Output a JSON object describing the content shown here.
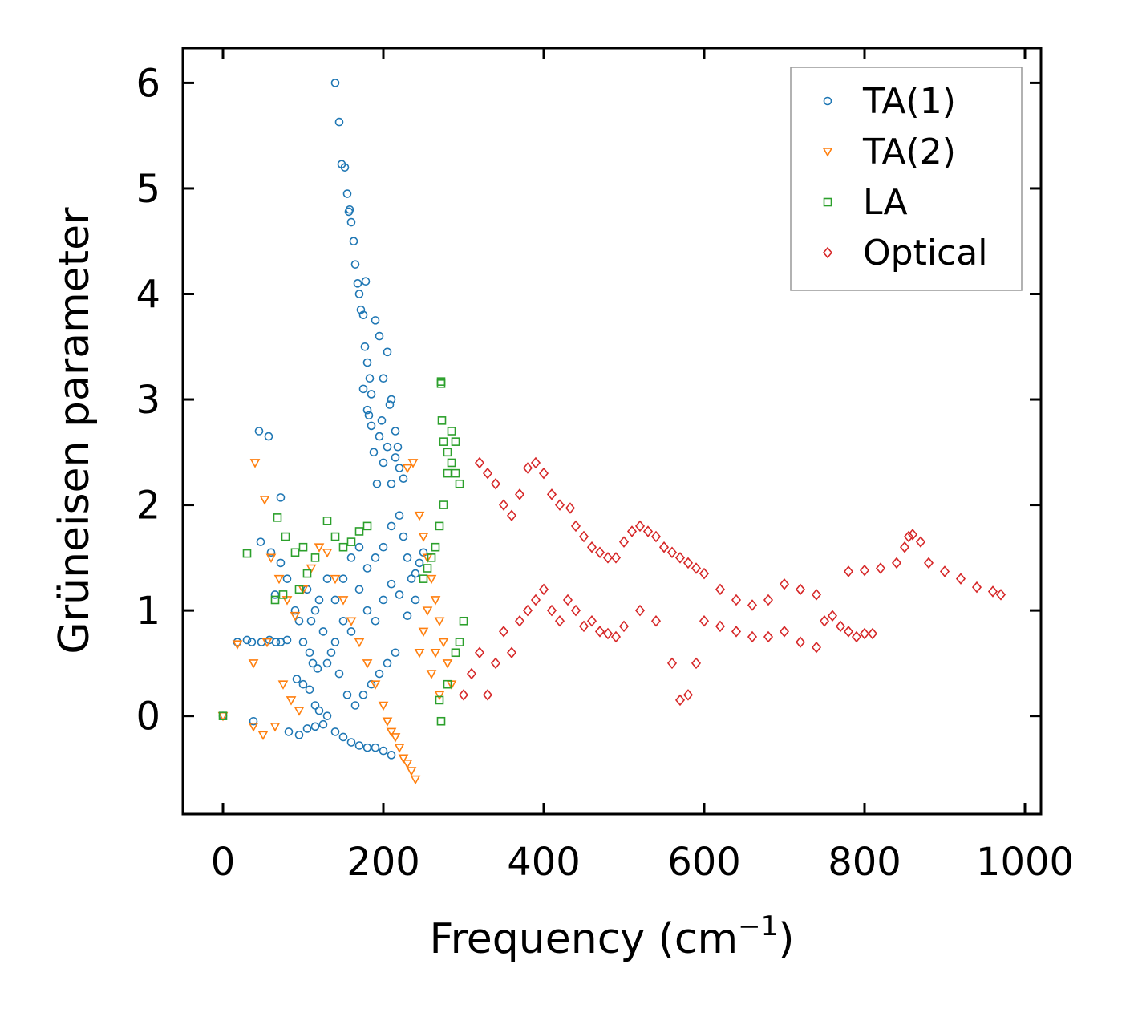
{
  "chart_data": {
    "type": "scatter",
    "title": "",
    "xlabel": "Frequency (cm",
    "xlabel_sup": "−1",
    "xlabel_suffix": ")",
    "ylabel": "Grüneisen parameter",
    "xlim": [
      -50,
      1020
    ],
    "ylim": [
      -0.93,
      6.33
    ],
    "xticks": [
      0,
      200,
      400,
      600,
      800,
      1000
    ],
    "xtick_labels": [
      "0",
      "200",
      "400",
      "600",
      "800",
      "1000"
    ],
    "yticks": [
      0,
      1,
      2,
      3,
      4,
      5,
      6
    ],
    "ytick_labels": [
      "0",
      "1",
      "2",
      "3",
      "4",
      "5",
      "6"
    ],
    "grid": false,
    "legend_position": "top-right",
    "series": [
      {
        "name": "TA(1)",
        "marker": "circle",
        "color": "#1f77b4",
        "points": [
          [
            0,
            0
          ],
          [
            38,
            -0.05
          ],
          [
            45,
            2.7
          ],
          [
            57,
            2.65
          ],
          [
            47,
            1.65
          ],
          [
            72,
            2.07
          ],
          [
            140,
            6.0
          ],
          [
            145,
            5.63
          ],
          [
            148,
            5.23
          ],
          [
            152,
            5.2
          ],
          [
            155,
            4.95
          ],
          [
            158,
            4.8
          ],
          [
            157,
            4.78
          ],
          [
            160,
            4.68
          ],
          [
            163,
            4.5
          ],
          [
            165,
            4.28
          ],
          [
            168,
            4.1
          ],
          [
            170,
            4.0
          ],
          [
            172,
            3.85
          ],
          [
            175,
            3.8
          ],
          [
            177,
            3.5
          ],
          [
            180,
            3.35
          ],
          [
            183,
            3.2
          ],
          [
            185,
            3.05
          ],
          [
            190,
            3.75
          ],
          [
            195,
            3.6
          ],
          [
            200,
            3.2
          ],
          [
            205,
            3.45
          ],
          [
            210,
            3.0
          ],
          [
            215,
            2.7
          ],
          [
            178,
            4.12
          ],
          [
            182,
            2.85
          ],
          [
            188,
            2.5
          ],
          [
            192,
            2.2
          ],
          [
            200,
            2.4
          ],
          [
            210,
            2.2
          ],
          [
            18,
            0.7
          ],
          [
            30,
            0.72
          ],
          [
            36,
            0.7
          ],
          [
            48,
            0.7
          ],
          [
            58,
            0.72
          ],
          [
            66,
            0.7
          ],
          [
            72,
            0.7
          ],
          [
            80,
            0.72
          ],
          [
            60,
            1.55
          ],
          [
            65,
            1.15
          ],
          [
            72,
            1.45
          ],
          [
            80,
            1.3
          ],
          [
            90,
            1.0
          ],
          [
            95,
            0.9
          ],
          [
            100,
            0.7
          ],
          [
            108,
            0.6
          ],
          [
            112,
            0.5
          ],
          [
            118,
            0.45
          ],
          [
            92,
            0.35
          ],
          [
            100,
            0.3
          ],
          [
            108,
            0.25
          ],
          [
            115,
            0.1
          ],
          [
            120,
            0.05
          ],
          [
            130,
            0.0
          ],
          [
            82,
            -0.15
          ],
          [
            95,
            -0.18
          ],
          [
            105,
            -0.12
          ],
          [
            115,
            -0.1
          ],
          [
            125,
            -0.08
          ],
          [
            140,
            -0.15
          ],
          [
            150,
            -0.2
          ],
          [
            160,
            -0.25
          ],
          [
            170,
            -0.28
          ],
          [
            180,
            -0.3
          ],
          [
            190,
            -0.3
          ],
          [
            200,
            -0.33
          ],
          [
            210,
            -0.37
          ],
          [
            130,
            1.3
          ],
          [
            140,
            1.1
          ],
          [
            150,
            0.9
          ],
          [
            160,
            0.8
          ],
          [
            170,
            1.2
          ],
          [
            180,
            1.4
          ],
          [
            190,
            1.5
          ],
          [
            200,
            1.6
          ],
          [
            210,
            1.8
          ],
          [
            220,
            1.9
          ],
          [
            225,
            1.7
          ],
          [
            230,
            1.5
          ],
          [
            235,
            1.3
          ],
          [
            240,
            1.1
          ],
          [
            215,
            0.6
          ],
          [
            205,
            0.5
          ],
          [
            195,
            0.4
          ],
          [
            185,
            0.3
          ],
          [
            175,
            0.2
          ],
          [
            165,
            0.1
          ],
          [
            155,
            0.2
          ],
          [
            145,
            0.4
          ],
          [
            135,
            0.6
          ],
          [
            125,
            0.8
          ],
          [
            115,
            1.0
          ],
          [
            105,
            1.2
          ],
          [
            110,
            0.9
          ],
          [
            120,
            1.1
          ],
          [
            130,
            0.5
          ],
          [
            140,
            0.7
          ],
          [
            150,
            1.3
          ],
          [
            160,
            1.5
          ],
          [
            170,
            1.6
          ],
          [
            180,
            1.0
          ],
          [
            190,
            0.9
          ],
          [
            200,
            1.1
          ],
          [
            210,
            1.25
          ],
          [
            220,
            1.15
          ],
          [
            230,
            0.95
          ],
          [
            240,
            1.35
          ],
          [
            245,
            1.45
          ],
          [
            250,
            1.55
          ],
          [
            175,
            3.1
          ],
          [
            180,
            2.9
          ],
          [
            185,
            2.75
          ],
          [
            195,
            2.65
          ],
          [
            205,
            2.55
          ],
          [
            215,
            2.45
          ],
          [
            220,
            2.35
          ],
          [
            225,
            2.25
          ],
          [
            218,
            2.55
          ],
          [
            208,
            2.95
          ],
          [
            198,
            2.8
          ]
        ]
      },
      {
        "name": "TA(2)",
        "marker": "triangle-down",
        "color": "#ff7f0e",
        "points": [
          [
            0,
            0
          ],
          [
            18,
            0.68
          ],
          [
            38,
            -0.1
          ],
          [
            40,
            2.4
          ],
          [
            50,
            -0.18
          ],
          [
            52,
            2.05
          ],
          [
            38,
            0.5
          ],
          [
            55,
            0.7
          ],
          [
            65,
            -0.1
          ],
          [
            75,
            0.3
          ],
          [
            85,
            0.15
          ],
          [
            95,
            0.05
          ],
          [
            60,
            1.5
          ],
          [
            70,
            1.3
          ],
          [
            80,
            1.1
          ],
          [
            90,
            0.95
          ],
          [
            100,
            1.2
          ],
          [
            110,
            1.4
          ],
          [
            120,
            1.6
          ],
          [
            130,
            1.55
          ],
          [
            140,
            1.3
          ],
          [
            150,
            1.1
          ],
          [
            160,
            0.9
          ],
          [
            170,
            0.7
          ],
          [
            180,
            0.5
          ],
          [
            190,
            0.3
          ],
          [
            200,
            0.1
          ],
          [
            205,
            -0.05
          ],
          [
            210,
            -0.15
          ],
          [
            215,
            -0.2
          ],
          [
            220,
            -0.3
          ],
          [
            225,
            -0.4
          ],
          [
            230,
            -0.45
          ],
          [
            235,
            -0.52
          ],
          [
            240,
            -0.6
          ],
          [
            237,
            2.4
          ],
          [
            230,
            2.35
          ],
          [
            245,
            1.9
          ],
          [
            250,
            1.7
          ],
          [
            255,
            1.5
          ],
          [
            260,
            1.3
          ],
          [
            265,
            1.1
          ],
          [
            270,
            0.9
          ],
          [
            275,
            0.7
          ],
          [
            280,
            0.5
          ],
          [
            285,
            0.3
          ],
          [
            245,
            0.6
          ],
          [
            250,
            0.8
          ],
          [
            255,
            1.0
          ],
          [
            260,
            0.4
          ],
          [
            265,
            0.6
          ],
          [
            270,
            0.2
          ]
        ]
      },
      {
        "name": "LA",
        "marker": "square",
        "color": "#2ca02c",
        "points": [
          [
            0,
            0
          ],
          [
            30,
            1.54
          ],
          [
            68,
            1.88
          ],
          [
            78,
            1.7
          ],
          [
            90,
            1.55
          ],
          [
            100,
            1.6
          ],
          [
            130,
            1.85
          ],
          [
            140,
            1.7
          ],
          [
            150,
            1.6
          ],
          [
            160,
            1.65
          ],
          [
            170,
            1.75
          ],
          [
            180,
            1.8
          ],
          [
            65,
            1.1
          ],
          [
            75,
            1.15
          ],
          [
            95,
            1.2
          ],
          [
            105,
            1.35
          ],
          [
            115,
            1.5
          ],
          [
            272,
            3.17
          ],
          [
            272,
            3.15
          ],
          [
            273,
            2.8
          ],
          [
            275,
            2.6
          ],
          [
            280,
            2.5
          ],
          [
            285,
            2.4
          ],
          [
            290,
            2.3
          ],
          [
            295,
            2.2
          ],
          [
            285,
            2.7
          ],
          [
            290,
            2.6
          ],
          [
            280,
            2.3
          ],
          [
            275,
            2.0
          ],
          [
            270,
            1.8
          ],
          [
            265,
            1.6
          ],
          [
            260,
            1.5
          ],
          [
            255,
            1.4
          ],
          [
            250,
            1.3
          ],
          [
            272,
            -0.05
          ],
          [
            270,
            0.15
          ],
          [
            280,
            0.3
          ],
          [
            290,
            0.6
          ],
          [
            295,
            0.7
          ],
          [
            300,
            0.9
          ]
        ]
      },
      {
        "name": "Optical",
        "marker": "diamond",
        "color": "#d62728",
        "points": [
          [
            300,
            0.2
          ],
          [
            310,
            0.4
          ],
          [
            320,
            0.6
          ],
          [
            330,
            0.2
          ],
          [
            340,
            0.5
          ],
          [
            350,
            0.8
          ],
          [
            360,
            0.6
          ],
          [
            370,
            0.9
          ],
          [
            380,
            1.0
          ],
          [
            390,
            1.1
          ],
          [
            400,
            1.2
          ],
          [
            410,
            1.0
          ],
          [
            420,
            0.9
          ],
          [
            430,
            1.1
          ],
          [
            440,
            1.0
          ],
          [
            450,
            0.85
          ],
          [
            460,
            0.9
          ],
          [
            470,
            0.8
          ],
          [
            480,
            0.78
          ],
          [
            490,
            0.75
          ],
          [
            500,
            0.85
          ],
          [
            520,
            1.0
          ],
          [
            540,
            0.9
          ],
          [
            560,
            0.5
          ],
          [
            570,
            0.15
          ],
          [
            580,
            0.2
          ],
          [
            590,
            0.5
          ],
          [
            600,
            0.9
          ],
          [
            620,
            0.85
          ],
          [
            640,
            0.8
          ],
          [
            660,
            0.75
          ],
          [
            680,
            0.75
          ],
          [
            700,
            0.8
          ],
          [
            720,
            0.7
          ],
          [
            740,
            0.65
          ],
          [
            320,
            2.4
          ],
          [
            330,
            2.3
          ],
          [
            340,
            2.2
          ],
          [
            350,
            2.0
          ],
          [
            360,
            1.9
          ],
          [
            370,
            2.1
          ],
          [
            380,
            2.35
          ],
          [
            390,
            2.4
          ],
          [
            400,
            2.3
          ],
          [
            410,
            2.1
          ],
          [
            420,
            2.0
          ],
          [
            433,
            1.97
          ],
          [
            440,
            1.8
          ],
          [
            450,
            1.7
          ],
          [
            460,
            1.6
          ],
          [
            470,
            1.55
          ],
          [
            480,
            1.5
          ],
          [
            490,
            1.5
          ],
          [
            500,
            1.65
          ],
          [
            510,
            1.75
          ],
          [
            520,
            1.8
          ],
          [
            530,
            1.75
          ],
          [
            540,
            1.7
          ],
          [
            550,
            1.6
          ],
          [
            560,
            1.55
          ],
          [
            570,
            1.5
          ],
          [
            580,
            1.45
          ],
          [
            590,
            1.4
          ],
          [
            600,
            1.35
          ],
          [
            620,
            1.2
          ],
          [
            640,
            1.1
          ],
          [
            660,
            1.05
          ],
          [
            680,
            1.1
          ],
          [
            700,
            1.25
          ],
          [
            720,
            1.2
          ],
          [
            740,
            1.15
          ],
          [
            750,
            0.9
          ],
          [
            760,
            0.95
          ],
          [
            770,
            0.85
          ],
          [
            780,
            0.8
          ],
          [
            790,
            0.75
          ],
          [
            800,
            0.78
          ],
          [
            810,
            0.78
          ],
          [
            780,
            1.37
          ],
          [
            800,
            1.38
          ],
          [
            820,
            1.4
          ],
          [
            840,
            1.45
          ],
          [
            850,
            1.6
          ],
          [
            855,
            1.7
          ],
          [
            860,
            1.72
          ],
          [
            870,
            1.65
          ],
          [
            880,
            1.45
          ],
          [
            900,
            1.37
          ],
          [
            920,
            1.3
          ],
          [
            940,
            1.22
          ],
          [
            960,
            1.18
          ],
          [
            970,
            1.15
          ]
        ]
      }
    ]
  }
}
